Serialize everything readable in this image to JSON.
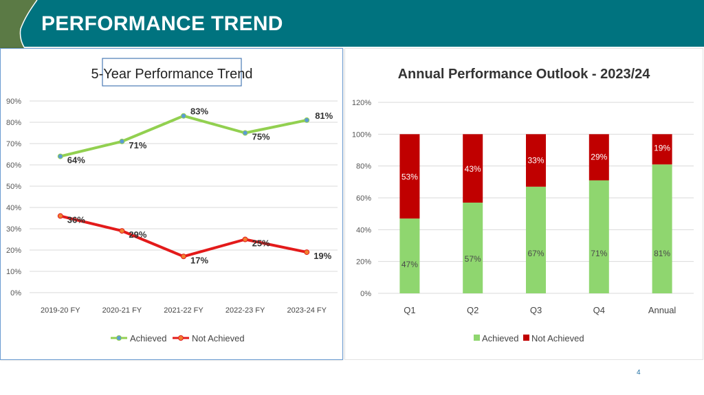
{
  "header": {
    "title": "PERFORMANCE TREND"
  },
  "page_number": "4",
  "colors": {
    "header_bg": "#00737f",
    "achieved": "#92d050",
    "not_achieved": "#c00000",
    "achieved_bar": "#8fd66f",
    "not_achieved_bar": "#c00000"
  },
  "chart_data": [
    {
      "type": "line",
      "title": "5-Year Performance Trend",
      "categories": [
        "2019-20 FY",
        "2020-21 FY",
        "2021-22 FY",
        "2022-23 FY",
        "2023-24 FY"
      ],
      "series": [
        {
          "name": "Achieved",
          "values": [
            64,
            71,
            83,
            75,
            81
          ],
          "labels": [
            "64%",
            "71%",
            "83%",
            "75%",
            "81%"
          ]
        },
        {
          "name": "Not Achieved",
          "values": [
            36,
            29,
            17,
            25,
            19
          ],
          "labels": [
            "36%",
            "29%",
            "17%",
            "25%",
            "19%"
          ]
        }
      ],
      "ylim": [
        0,
        90
      ],
      "yticks": [
        "0%",
        "10%",
        "20%",
        "30%",
        "40%",
        "50%",
        "60%",
        "70%",
        "80%",
        "90%"
      ],
      "grid": true,
      "legend": "bottom"
    },
    {
      "type": "bar",
      "stacked": true,
      "title": "Annual Performance Outlook - 2023/24",
      "categories": [
        "Q1",
        "Q2",
        "Q3",
        "Q4",
        "Annual"
      ],
      "series": [
        {
          "name": "Achieved",
          "values": [
            47,
            57,
            67,
            71,
            81
          ],
          "labels": [
            "47%",
            "57%",
            "67%",
            "71%",
            "81%"
          ]
        },
        {
          "name": "Not Achieved",
          "values": [
            53,
            43,
            33,
            29,
            19
          ],
          "labels": [
            "53%",
            "43%",
            "33%",
            "29%",
            "19%"
          ]
        }
      ],
      "ylim": [
        0,
        120
      ],
      "yticks": [
        "0%",
        "20%",
        "40%",
        "60%",
        "80%",
        "100%",
        "120%"
      ],
      "grid": true,
      "legend": "bottom"
    }
  ]
}
